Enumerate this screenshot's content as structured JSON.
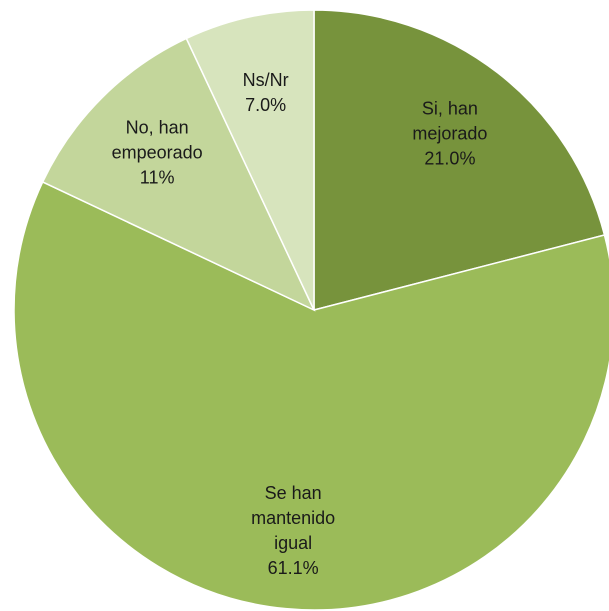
{
  "chart_data": {
    "type": "pie",
    "categories": [
      "Si, han mejorado",
      "Se han mantenido igual",
      "No, han empeorado",
      "Ns/Nr"
    ],
    "values": [
      21,
      61.1,
      11,
      7
    ],
    "value_labels": [
      "21.0%",
      "61.1%",
      "11%",
      "7.0%"
    ],
    "colors": [
      "#77933c",
      "#9bbb59",
      "#c3d69b",
      "#d7e4bd"
    ]
  }
}
